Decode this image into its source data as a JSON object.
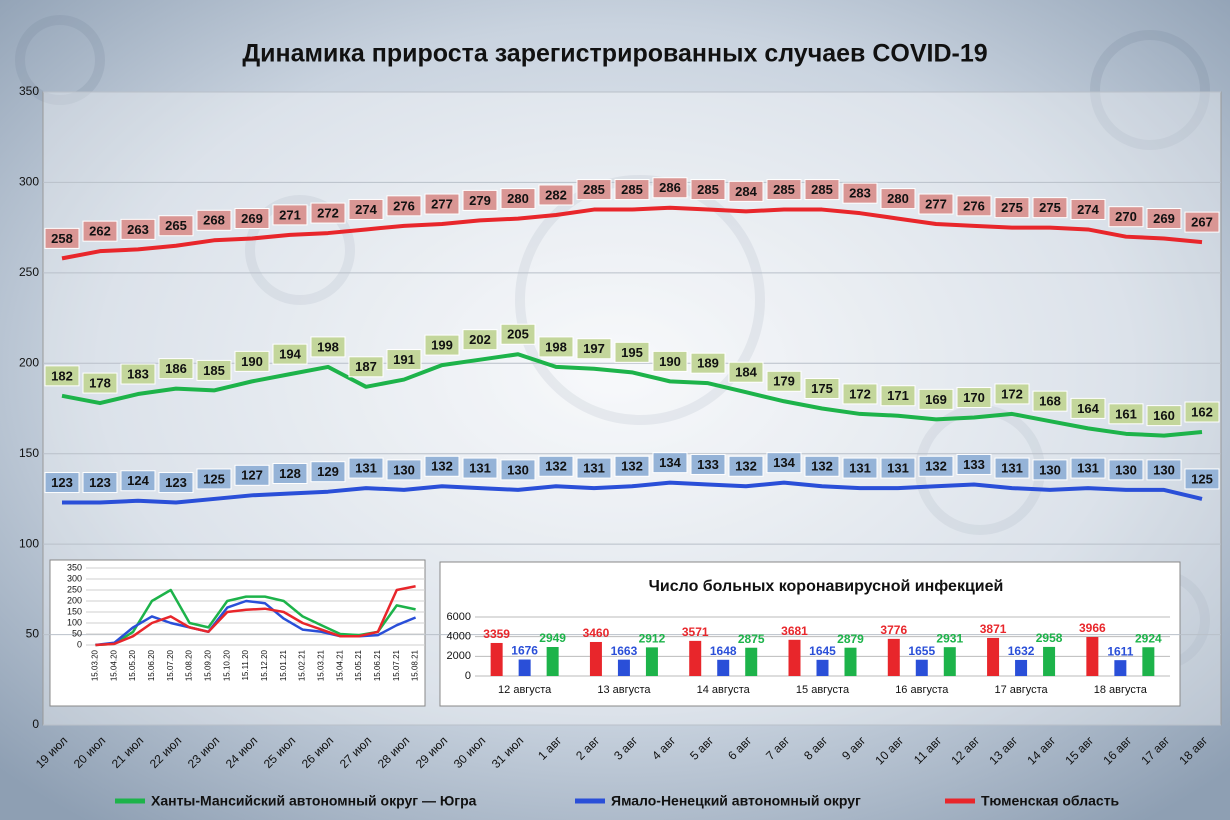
{
  "chart_data": [
    {
      "type": "line",
      "title": "Динамика прироста зарегистрированных случаев COVID-19",
      "categories": [
        "19 июл",
        "20 июл",
        "21 июл",
        "22 июл",
        "23 июл",
        "24 июл",
        "25 июл",
        "26 июл",
        "27 июл",
        "28 июл",
        "29 июл",
        "30 июл",
        "31 июл",
        "1 авг",
        "2 авг",
        "3 авг",
        "4 авг",
        "5 авг",
        "6 авг",
        "7 авг",
        "8 авг",
        "9 авг",
        "10 авг",
        "11 авг",
        "12 авг",
        "13 авг",
        "14 авг",
        "15 авг",
        "16 авг",
        "17 авг",
        "18 авг"
      ],
      "series": [
        {
          "name": "Ханты-Мансийский автономный округ — Югра",
          "color": "#1db34a",
          "label_color": "#c3d69b",
          "values": [
            182,
            178,
            183,
            186,
            185,
            190,
            194,
            198,
            187,
            191,
            199,
            202,
            205,
            198,
            197,
            195,
            190,
            189,
            184,
            179,
            175,
            172,
            171,
            169,
            170,
            172,
            168,
            164,
            161,
            160,
            162
          ]
        },
        {
          "name": "Ямало-Ненецкий автономный округ",
          "color": "#2a4fd8",
          "label_color": "#95b3d7",
          "values": [
            123,
            123,
            124,
            123,
            125,
            127,
            128,
            129,
            131,
            130,
            132,
            131,
            130,
            132,
            131,
            132,
            134,
            133,
            132,
            134,
            132,
            131,
            131,
            132,
            133,
            131,
            130,
            131,
            130,
            130,
            125
          ]
        },
        {
          "name": "Тюменская область",
          "color": "#e8262b",
          "label_color": "#d99694",
          "values": [
            258,
            262,
            263,
            265,
            268,
            269,
            271,
            272,
            274,
            276,
            277,
            279,
            280,
            282,
            285,
            285,
            286,
            285,
            284,
            285,
            285,
            283,
            280,
            277,
            276,
            275,
            275,
            274,
            270,
            269,
            267
          ]
        }
      ],
      "ylim": [
        0,
        350
      ],
      "yticks": [
        0,
        50,
        100,
        150,
        200,
        250,
        300,
        350
      ],
      "grid": true,
      "data_labels": true,
      "legend": "bottom"
    },
    {
      "type": "line",
      "categories": [
        "15.03.20",
        "15.04.20",
        "15.05.20",
        "15.06.20",
        "15.07.20",
        "15.08.20",
        "15.09.20",
        "15.10.20",
        "15.11.20",
        "15.12.20",
        "15.01.21",
        "15.02.21",
        "15.03.21",
        "15.04.21",
        "15.05.21",
        "15.06.21",
        "15.07.21",
        "15.08.21"
      ],
      "series": [
        {
          "color": "#1db34a",
          "values": [
            0,
            5,
            60,
            200,
            250,
            100,
            80,
            200,
            220,
            220,
            200,
            130,
            90,
            50,
            45,
            60,
            180,
            162
          ]
        },
        {
          "color": "#2a4fd8",
          "values": [
            0,
            10,
            80,
            130,
            100,
            80,
            60,
            170,
            200,
            190,
            120,
            70,
            60,
            40,
            40,
            45,
            90,
            125
          ]
        },
        {
          "color": "#e8262b",
          "values": [
            0,
            5,
            40,
            100,
            130,
            80,
            60,
            150,
            160,
            165,
            150,
            100,
            70,
            40,
            40,
            60,
            250,
            267
          ]
        }
      ],
      "ylim": [
        0,
        350
      ],
      "yticks": [
        0,
        50,
        100,
        150,
        200,
        250,
        300,
        350
      ],
      "grid": true,
      "data_labels": false
    },
    {
      "type": "bar",
      "title": "Число больных коронавирусной  инфекцией",
      "categories": [
        "12 августа",
        "13 августа",
        "14 августа",
        "15 августа",
        "16 августа",
        "17 августа",
        "18 августа"
      ],
      "series": [
        {
          "color": "#e8262b",
          "values": [
            3359,
            3460,
            3571,
            3681,
            3776,
            3871,
            3966
          ]
        },
        {
          "color": "#2a4fd8",
          "values": [
            1676,
            1663,
            1648,
            1645,
            1655,
            1632,
            1611
          ]
        },
        {
          "color": "#1db34a",
          "values": [
            2949,
            2912,
            2875,
            2879,
            2931,
            2958,
            2924
          ]
        }
      ],
      "ylim": [
        0,
        6000
      ],
      "yticks": [
        0,
        2000,
        4000,
        6000
      ],
      "grid": true,
      "data_labels": true
    }
  ]
}
